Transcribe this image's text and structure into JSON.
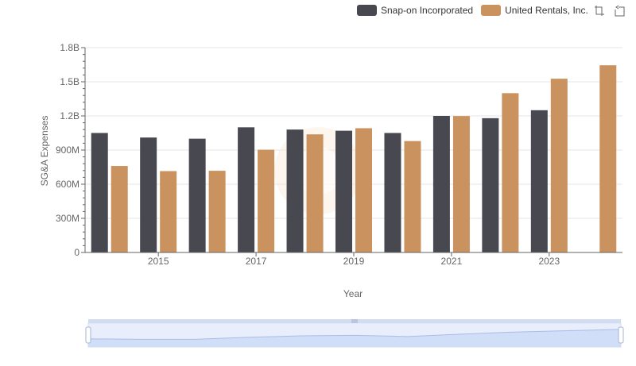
{
  "chart_data": {
    "type": "bar",
    "xlabel": "Year",
    "ylabel": "SG&A Expenses",
    "ylim": [
      0,
      1800000000
    ],
    "y_ticks": [
      0,
      300000000,
      600000000,
      900000000,
      1200000000,
      1500000000,
      1800000000
    ],
    "y_tick_labels": [
      "0",
      "300M",
      "600M",
      "900M",
      "1.2B",
      "1.5B",
      "1.8B"
    ],
    "categories": [
      "2014",
      "2015",
      "2016",
      "2017",
      "2018",
      "2019",
      "2020",
      "2021",
      "2022",
      "2023",
      "2024"
    ],
    "x_tick_labels": [
      "2015",
      "2017",
      "2019",
      "2021",
      "2023"
    ],
    "series": [
      {
        "name": "Snap-on Incorporated",
        "color": "#484851",
        "values": [
          1050000000,
          1010000000,
          1000000000,
          1100000000,
          1080000000,
          1070000000,
          1050000000,
          1200000000,
          1180000000,
          1250000000,
          null
        ]
      },
      {
        "name": "United Rentals, Inc.",
        "color": "#c9925e",
        "values": [
          760000000,
          715000000,
          718000000,
          903000000,
          1038000000,
          1092000000,
          979000000,
          1199000000,
          1400000000,
          1527000000,
          1645000000
        ]
      }
    ],
    "grid": true,
    "legend_position": "top-right"
  },
  "toolbox": {
    "zoom_icon": "zoom-icon",
    "reset_icon": "reset-icon"
  }
}
